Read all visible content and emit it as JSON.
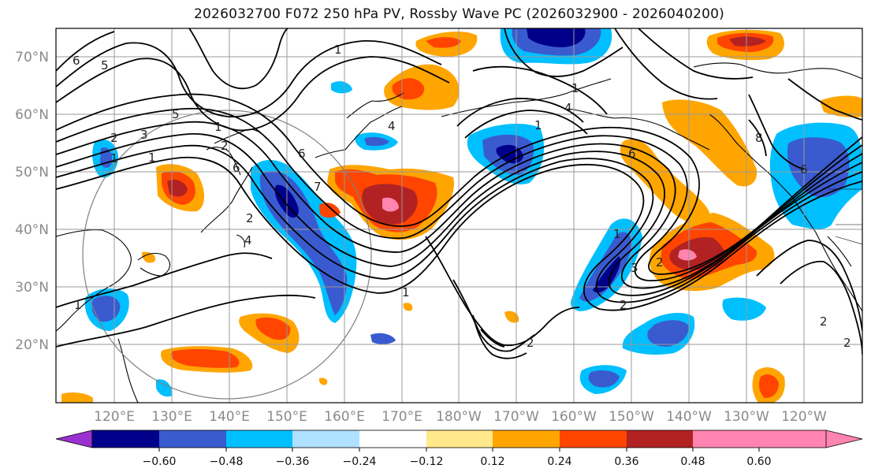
{
  "title": "2026032700 F072 250 hPa PV, Rossby Wave PC (2026032900 - 2026040200)",
  "lat_labels": [
    "70°N",
    "60°N",
    "50°N",
    "40°N",
    "30°N",
    "20°N"
  ],
  "lon_labels": [
    "120°E",
    "130°E",
    "140°E",
    "150°E",
    "160°E",
    "170°E",
    "180°W",
    "170°W",
    "160°W",
    "150°W",
    "140°W",
    "130°W",
    "120°W"
  ],
  "colorbar": {
    "tick_labels": [
      "−0.60",
      "−0.48",
      "−0.36",
      "−0.24",
      "−0.12",
      "0.12",
      "0.24",
      "0.36",
      "0.48",
      "0.60"
    ],
    "colors": [
      "#9b30d0",
      "#00008b",
      "#3a5bd0",
      "#00bfff",
      "#b0e0ff",
      "#ffffff",
      "#ffe98a",
      "#ffa500",
      "#ff4500",
      "#b22222",
      "#ff85b0"
    ]
  },
  "contour_labels": [
    "6",
    "5",
    "5",
    "2",
    "1",
    "3",
    "2",
    "1",
    "1",
    "6",
    "7",
    "6",
    "2",
    "4",
    "1",
    "4",
    "1",
    "4",
    "1",
    "6",
    "2",
    "1",
    "3",
    "2",
    "2",
    "1",
    "8",
    "6",
    "2",
    "2",
    "1"
  ]
}
